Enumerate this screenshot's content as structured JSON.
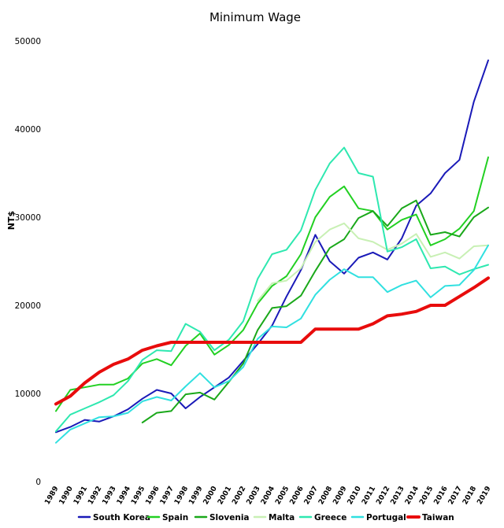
{
  "chart_data": {
    "type": "line",
    "title": "Minimum Wage",
    "xlabel": "",
    "ylabel": "NT$",
    "ylim": [
      0,
      50000
    ],
    "yticks": [
      0,
      10000,
      20000,
      30000,
      40000,
      50000
    ],
    "ytick_labels": [
      "0",
      "10000",
      "20000",
      "30000",
      "40000",
      "50000"
    ],
    "categories": [
      "1989",
      "1990",
      "1991",
      "1992",
      "1993",
      "1994",
      "1995",
      "1996",
      "1997",
      "1998",
      "1999",
      "2000",
      "2001",
      "2002",
      "2003",
      "2004",
      "2005",
      "2006",
      "2007",
      "2008",
      "2009",
      "2010",
      "2011",
      "2012",
      "2013",
      "2014",
      "2015",
      "2016",
      "2017",
      "2018",
      "2019"
    ],
    "legend_position": "bottom",
    "series": [
      {
        "name": "South Korea",
        "color": "#1a1ab8",
        "width": 2,
        "values": [
          5600,
          6200,
          7000,
          6800,
          7400,
          8200,
          9400,
          10400,
          10000,
          8300,
          9600,
          10700,
          11800,
          13700,
          15600,
          17700,
          21000,
          24000,
          28000,
          25000,
          23600,
          25400,
          26000,
          25200,
          27600,
          31300,
          32700,
          35000,
          36500,
          43100,
          47800
        ]
      },
      {
        "name": "Spain",
        "color": "#22d022",
        "width": 2,
        "values": [
          8000,
          10400,
          10700,
          11000,
          11000,
          11700,
          13400,
          13900,
          13200,
          15400,
          16800,
          14400,
          15500,
          17200,
          20200,
          22200,
          23300,
          25800,
          30000,
          32300,
          33500,
          31000,
          30700,
          28600,
          29700,
          30300,
          26800,
          27500,
          28700,
          30700,
          36800
        ]
      },
      {
        "name": "Slovenia",
        "color": "#1aa81a",
        "width": 2,
        "values": [
          null,
          null,
          null,
          null,
          null,
          null,
          6700,
          7800,
          8000,
          9900,
          10100,
          9300,
          11300,
          13400,
          17200,
          19700,
          19900,
          21100,
          23900,
          26500,
          27500,
          29900,
          30700,
          29000,
          31000,
          31900,
          28000,
          28300,
          27800,
          30000,
          31100
        ]
      },
      {
        "name": "Malta",
        "color": "#c8f0b4",
        "width": 2,
        "values": [
          null,
          null,
          null,
          null,
          null,
          null,
          null,
          null,
          null,
          null,
          null,
          null,
          null,
          null,
          20500,
          22500,
          22800,
          24200,
          27200,
          28600,
          29300,
          27600,
          27200,
          26300,
          27000,
          28100,
          25500,
          26000,
          25300,
          26700,
          26800
        ]
      },
      {
        "name": "Greece",
        "color": "#2ee8b0",
        "width": 2,
        "values": [
          5700,
          7600,
          8300,
          9000,
          9800,
          11400,
          13800,
          14900,
          14800,
          17900,
          17000,
          14900,
          16100,
          18200,
          23000,
          25800,
          26300,
          28500,
          33100,
          36100,
          37900,
          35000,
          34600,
          26100,
          26600,
          27500,
          24200,
          24400,
          23500,
          24100,
          24600
        ]
      },
      {
        "name": "Portugal",
        "color": "#30e0e0",
        "width": 2,
        "values": [
          4400,
          5900,
          6600,
          7300,
          7400,
          7800,
          9100,
          9600,
          9200,
          10800,
          12300,
          10700,
          11400,
          13000,
          16200,
          17600,
          17500,
          18500,
          21200,
          22900,
          24100,
          23200,
          23200,
          21500,
          22300,
          22800,
          20900,
          22200,
          22300,
          24000,
          26800
        ]
      },
      {
        "name": "Taiwan",
        "color": "#e80c0c",
        "width": 4,
        "values": [
          8800,
          9700,
          11200,
          12400,
          13300,
          13900,
          14900,
          15400,
          15800,
          15800,
          15800,
          15800,
          15800,
          15800,
          15800,
          15800,
          15800,
          15800,
          17300,
          17300,
          17300,
          17300,
          17900,
          18800,
          19000,
          19300,
          20000,
          20000,
          21000,
          22000,
          23100
        ]
      }
    ]
  }
}
